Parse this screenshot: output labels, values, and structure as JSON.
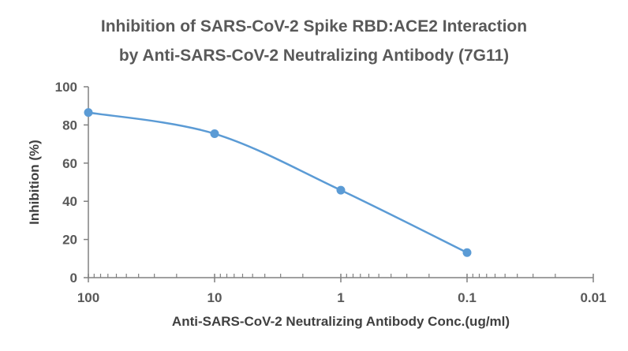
{
  "chart_data": {
    "type": "line",
    "title": [
      "Inhibition of SARS-CoV-2 Spike RBD:ACE2 Interaction",
      "by Anti-SARS-CoV-2 Neutralizing Antibody (7G11)"
    ],
    "xlabel": "Anti-SARS-CoV-2 Neutralizing Antibody Conc.(ug/ml)",
    "ylabel": "Inhibition (%)",
    "x_scale": "log",
    "x_reversed": true,
    "xlim": [
      100,
      0.01
    ],
    "x_ticks": [
      "100",
      "10",
      "1",
      "0.1",
      "0.01"
    ],
    "ylim": [
      0,
      100
    ],
    "y_ticks": [
      "0",
      "20",
      "40",
      "60",
      "80",
      "100"
    ],
    "grid": false,
    "smoothed": true,
    "series": [
      {
        "x": [
          100,
          10,
          1,
          0.1
        ],
        "y": [
          86.5,
          75.4,
          45.8,
          13.1
        ],
        "color": "#5b9bd5"
      }
    ],
    "axis_color": "#808080"
  }
}
